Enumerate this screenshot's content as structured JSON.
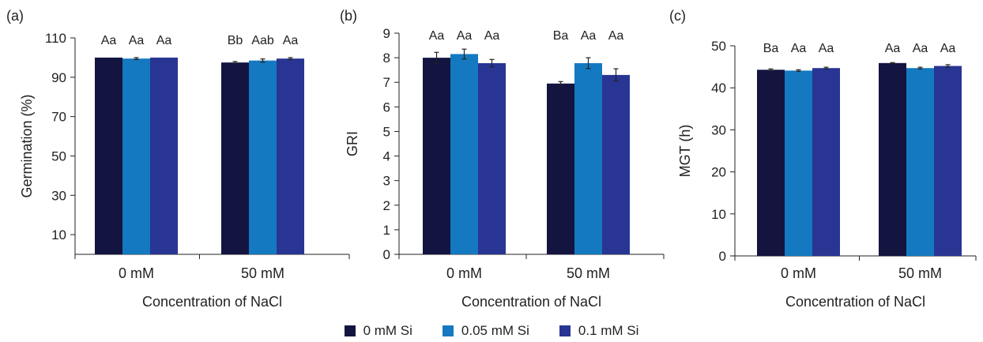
{
  "colors": {
    "series": [
      "#131440",
      "#1479c0",
      "#283593"
    ],
    "axis": "#222222",
    "error_bar": "#222222"
  },
  "legend": {
    "placement": "bottom-center",
    "items": [
      "0 mM Si",
      "0.05 mM Si",
      "0.1 mM Si"
    ]
  },
  "chart_data": [
    {
      "type": "bar",
      "panel_label": "(a)",
      "xlabel": "Concentration of NaCl",
      "ylabel": "Germination (%)",
      "categories": [
        "0 mM",
        "50 mM"
      ],
      "ylim": [
        0,
        110
      ],
      "yticks": [
        10,
        30,
        50,
        70,
        90,
        110
      ],
      "grid": false,
      "series": [
        {
          "name": "0 mM Si",
          "values": [
            100,
            97.5
          ],
          "errors": [
            0,
            0.5
          ],
          "letters": [
            "Aa",
            "Bb"
          ]
        },
        {
          "name": "0.05 mM Si",
          "values": [
            99.5,
            98.5
          ],
          "errors": [
            0.5,
            0.8
          ],
          "letters": [
            "Aa",
            "Aab"
          ]
        },
        {
          "name": "0.1 mM Si",
          "values": [
            100,
            99.5
          ],
          "errors": [
            0,
            0.5
          ],
          "letters": [
            "Aa",
            "Aa"
          ]
        }
      ]
    },
    {
      "type": "bar",
      "panel_label": "(b)",
      "xlabel": "Concentration of NaCl",
      "ylabel": "GRI",
      "categories": [
        "0 mM",
        "50 mM"
      ],
      "ylim": [
        0,
        9
      ],
      "yticks": [
        0,
        1,
        2,
        3,
        4,
        5,
        6,
        7,
        8,
        9
      ],
      "grid": false,
      "series": [
        {
          "name": "0 mM Si",
          "values": [
            8.0,
            6.95
          ],
          "errors": [
            0.22,
            0.08
          ],
          "letters": [
            "Aa",
            "Ba"
          ]
        },
        {
          "name": "0.05 mM Si",
          "values": [
            8.15,
            7.78
          ],
          "errors": [
            0.2,
            0.22
          ],
          "letters": [
            "Aa",
            "Aa"
          ]
        },
        {
          "name": "0.1 mM Si",
          "values": [
            7.78,
            7.3
          ],
          "errors": [
            0.15,
            0.25
          ],
          "letters": [
            "Aa",
            "Aa"
          ]
        }
      ]
    },
    {
      "type": "bar",
      "panel_label": "(c)",
      "xlabel": "Concentration of NaCl",
      "ylabel": "MGT (h)",
      "categories": [
        "0 mM",
        "50 mM"
      ],
      "ylim": [
        0,
        50
      ],
      "yticks": [
        0,
        10,
        20,
        30,
        40,
        50
      ],
      "grid": false,
      "series": [
        {
          "name": "0 mM Si",
          "values": [
            44.3,
            45.9
          ],
          "errors": [
            0.2,
            0.1
          ],
          "letters": [
            "Ba",
            "Aa"
          ]
        },
        {
          "name": "0.05 mM Si",
          "values": [
            44.1,
            44.7
          ],
          "errors": [
            0.2,
            0.2
          ],
          "letters": [
            "Aa",
            "Aa"
          ]
        },
        {
          "name": "0.1 mM Si",
          "values": [
            44.7,
            45.2
          ],
          "errors": [
            0.2,
            0.3
          ],
          "letters": [
            "Aa",
            "Aa"
          ]
        }
      ]
    }
  ]
}
